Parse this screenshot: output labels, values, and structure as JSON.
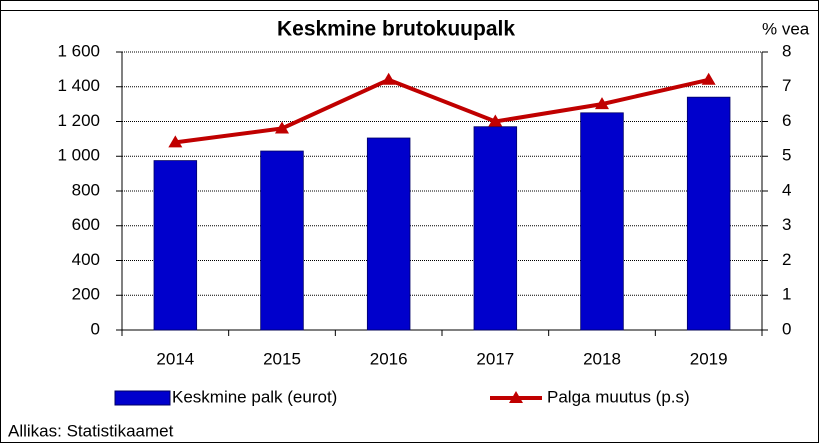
{
  "chart_data": {
    "type": "bar_line",
    "title": "Keskmine brutokuupalk",
    "y2_label": "% vea",
    "categories": [
      "2014",
      "2015",
      "2016",
      "2017",
      "2018",
      "2019"
    ],
    "series": [
      {
        "name": "Keskmine palk (eurot)",
        "color": "#0000cc",
        "type": "bar",
        "values": [
          975,
          1030,
          1105,
          1170,
          1250,
          1340
        ]
      },
      {
        "name": "Palga muutus (p.s)",
        "color": "#c00000",
        "type": "line",
        "axis": "y2",
        "values": [
          5.4,
          5.8,
          7.2,
          6.0,
          6.5,
          7.2
        ]
      }
    ],
    "ylim": [
      0,
      1600
    ],
    "yticks": [
      0,
      200,
      400,
      600,
      800,
      {
        "value": 1000,
        "label": "1 000"
      },
      {
        "value": 1200,
        "label": "1 200"
      },
      {
        "value": 1400,
        "label": "1 400"
      },
      {
        "value": 1600,
        "label": "1 600"
      }
    ],
    "y2lim": [
      0,
      8
    ],
    "y2ticks": [
      0,
      1,
      2,
      3,
      4,
      5,
      6,
      7,
      8
    ],
    "grid": true,
    "legend": "bottom",
    "source": "Allikas: Statistikaamet"
  }
}
